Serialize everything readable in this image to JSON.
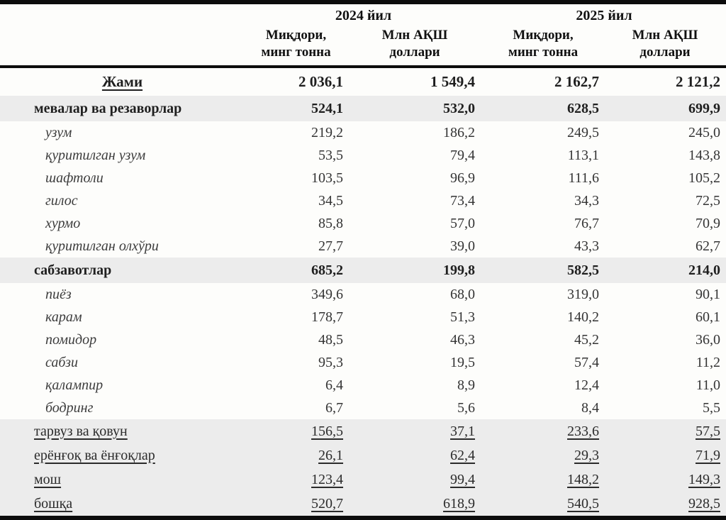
{
  "table": {
    "years": [
      "2024 йил",
      "2025 йил"
    ],
    "measures": [
      {
        "line1": "Миқдори,",
        "line2": "минг тонна"
      },
      {
        "line1": "Млн АҚШ",
        "line2": "доллари"
      },
      {
        "line1": "Миқдори,",
        "line2": "минг тонна"
      },
      {
        "line1": "Млн АҚШ",
        "line2": "доллари"
      }
    ],
    "rows": [
      {
        "label": "Жами",
        "style": "total",
        "values": [
          "2 036,1",
          "1 549,4",
          "2 162,7",
          "2 121,2"
        ]
      },
      {
        "label": "мевалар ва резаворлар",
        "style": "group",
        "values": [
          "524,1",
          "532,0",
          "628,5",
          "699,9"
        ]
      },
      {
        "label": "узум",
        "style": "item",
        "values": [
          "219,2",
          "186,2",
          "249,5",
          "245,0"
        ]
      },
      {
        "label": "қуритилган узум",
        "style": "item",
        "values": [
          "53,5",
          "79,4",
          "113,1",
          "143,8"
        ]
      },
      {
        "label": "шафтоли",
        "style": "item",
        "values": [
          "103,5",
          "96,9",
          "111,6",
          "105,2"
        ]
      },
      {
        "label": "гилос",
        "style": "item",
        "values": [
          "34,5",
          "73,4",
          "34,3",
          "72,5"
        ]
      },
      {
        "label": "хурмо",
        "style": "item",
        "values": [
          "85,8",
          "57,0",
          "76,7",
          "70,9"
        ]
      },
      {
        "label": "қуритилган олхўри",
        "style": "item",
        "values": [
          "27,7",
          "39,0",
          "43,3",
          "62,7"
        ]
      },
      {
        "label": "сабзавотлар",
        "style": "group",
        "values": [
          "685,2",
          "199,8",
          "582,5",
          "214,0"
        ]
      },
      {
        "label": "пиёз",
        "style": "item",
        "values": [
          "349,6",
          "68,0",
          "319,0",
          "90,1"
        ]
      },
      {
        "label": "карам",
        "style": "item",
        "values": [
          "178,7",
          "51,3",
          "140,2",
          "60,1"
        ]
      },
      {
        "label": "помидор",
        "style": "item",
        "values": [
          "48,5",
          "46,3",
          "45,2",
          "36,0"
        ]
      },
      {
        "label": "сабзи",
        "style": "item",
        "values": [
          "95,3",
          "19,5",
          "57,4",
          "11,2"
        ]
      },
      {
        "label": "қалампир",
        "style": "item",
        "values": [
          "6,4",
          "8,9",
          "12,4",
          "11,0"
        ]
      },
      {
        "label": "бодринг",
        "style": "item",
        "values": [
          "6,7",
          "5,6",
          "8,4",
          "5,5"
        ]
      },
      {
        "label": "тарвуз ва қовун",
        "style": "under",
        "values": [
          "156,5",
          "37,1",
          "233,6",
          "57,5"
        ]
      },
      {
        "label": "ерёнғоқ ва ёнғоқлар",
        "style": "under",
        "values": [
          "26,1",
          "62,4",
          "29,3",
          "71,9"
        ]
      },
      {
        "label": "мош",
        "style": "under",
        "values": [
          "123,4",
          "99,4",
          "148,2",
          "149,3"
        ]
      },
      {
        "label": "бошқа",
        "style": "under",
        "values": [
          "520,7",
          "618,9",
          "540,5",
          "928,5"
        ]
      }
    ]
  },
  "colors": {
    "row_highlight": "#ececec",
    "border": "#0c0c0c",
    "text": "#1f1f1f"
  }
}
